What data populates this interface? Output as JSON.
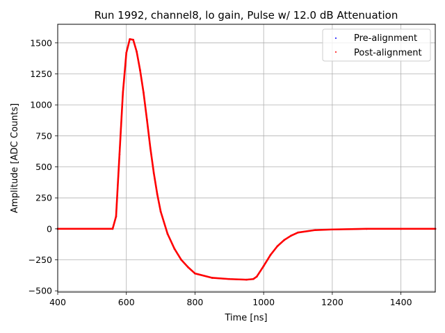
{
  "chart_data": {
    "type": "scatter",
    "title": "Run 1992, channel8, lo gain, Pulse w/ 12.0 dB Attenuation",
    "xlabel": "Time [ns]",
    "ylabel": "Amplitude [ADC Counts]",
    "xlim": [
      400,
      1500
    ],
    "ylim": [
      -510,
      1650
    ],
    "xticks": [
      400,
      600,
      800,
      1000,
      1200,
      1400
    ],
    "yticks": [
      -500,
      -250,
      0,
      250,
      500,
      750,
      1000,
      1250,
      1500
    ],
    "grid": true,
    "legend_position": "top-right",
    "series": [
      {
        "name": "Pre-alignment",
        "color": "#0000ff",
        "marker": "dot",
        "x": [
          400,
          560,
          570,
          580,
          590,
          600,
          610,
          620,
          630,
          640,
          650,
          660,
          670,
          680,
          690,
          700,
          720,
          740,
          760,
          780,
          800,
          850,
          900,
          950,
          970,
          980,
          1000,
          1020,
          1040,
          1060,
          1080,
          1100,
          1150,
          1200,
          1300,
          1400,
          1500
        ],
        "y": [
          0,
          0,
          100,
          600,
          1100,
          1420,
          1530,
          1525,
          1430,
          1280,
          1100,
          880,
          650,
          450,
          280,
          140,
          -40,
          -160,
          -250,
          -310,
          -360,
          -395,
          -405,
          -410,
          -405,
          -385,
          -300,
          -210,
          -140,
          -90,
          -55,
          -30,
          -10,
          -5,
          0,
          0,
          0
        ]
      },
      {
        "name": "Post-alignment",
        "color": "#ff0000",
        "marker": "dot",
        "x": [
          400,
          560,
          570,
          580,
          590,
          600,
          610,
          620,
          630,
          640,
          650,
          660,
          670,
          680,
          690,
          700,
          720,
          740,
          760,
          780,
          800,
          850,
          900,
          950,
          970,
          980,
          1000,
          1020,
          1040,
          1060,
          1080,
          1100,
          1150,
          1200,
          1300,
          1400,
          1500
        ],
        "y": [
          0,
          0,
          100,
          600,
          1100,
          1420,
          1530,
          1525,
          1430,
          1280,
          1100,
          880,
          650,
          450,
          280,
          140,
          -40,
          -160,
          -250,
          -310,
          -360,
          -395,
          -405,
          -410,
          -405,
          -385,
          -300,
          -210,
          -140,
          -90,
          -55,
          -30,
          -10,
          -5,
          0,
          0,
          0
        ]
      }
    ]
  }
}
